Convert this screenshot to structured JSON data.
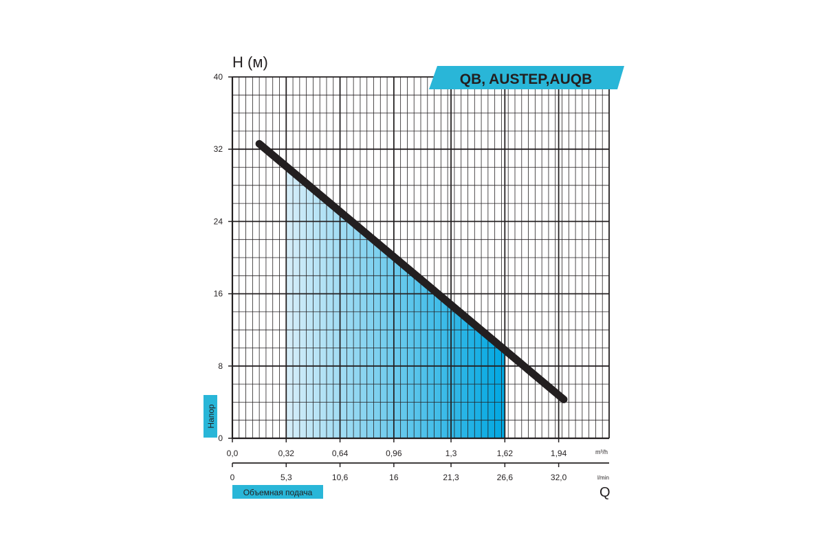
{
  "chart_data": {
    "type": "area",
    "title": "QB, AUSTEP,AUQB",
    "y_axis": {
      "label": "H (м)",
      "side_label": "Напор",
      "ticks": [
        "0",
        "8",
        "16",
        "24",
        "32",
        "40"
      ],
      "range": [
        0,
        40
      ],
      "minor_step": 2
    },
    "x_axis_primary": {
      "unit": "m³/h",
      "ticks": [
        "0,0",
        "0,32",
        "0,64",
        "0,96",
        "1,3",
        "1,62",
        "1,94"
      ],
      "tick_values": [
        0,
        0.32,
        0.64,
        0.96,
        1.3,
        1.62,
        1.94
      ],
      "range": [
        0,
        2.24
      ]
    },
    "x_axis_secondary": {
      "unit": "l/min",
      "ticks": [
        "0",
        "5,3",
        "10,6",
        "16",
        "21,3",
        "26,6",
        "32,0"
      ],
      "label": "Объемная подача",
      "symbol": "Q"
    },
    "grid": true,
    "series": [
      {
        "points": [
          {
            "x": 0.16,
            "y": 32.6
          },
          {
            "x": 1.97,
            "y": 4.3
          }
        ]
      }
    ],
    "working_range": {
      "x_start": 0.32,
      "x_end": 1.62
    },
    "colors": {
      "curve": "#231f20",
      "grid": "#231f20",
      "fill_start": "#d7eef9",
      "fill_end": "#00a7e1",
      "label_bg": "#29b6d8",
      "title_bg": "#29b6d8",
      "text": "#231f20"
    }
  }
}
